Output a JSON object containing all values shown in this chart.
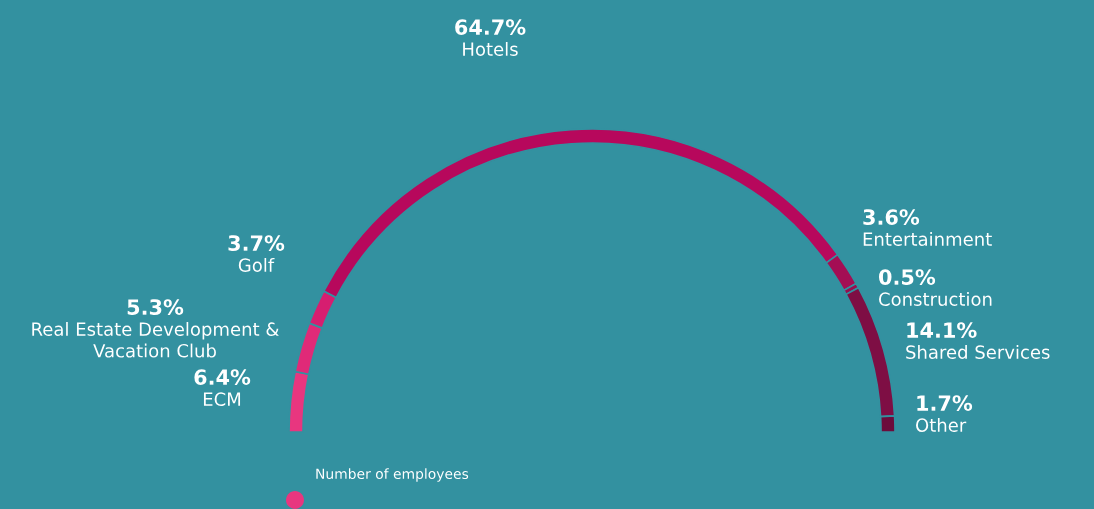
{
  "chart_data": {
    "type": "donut",
    "categories": [
      "ECM",
      "Real Estate Development &\nVacation Club",
      "Golf",
      "Hotels",
      "Entertainment",
      "Construction",
      "Shared Services",
      "Other"
    ],
    "values": [
      6.4,
      5.3,
      3.7,
      64.7,
      3.6,
      0.5,
      14.1,
      1.7
    ],
    "value_labels": [
      "6.4%",
      "5.3%",
      "3.7%",
      "64.7%",
      "3.6%",
      "0.5%",
      "14.1%",
      "1.7%"
    ],
    "colors": [
      "#e8367f",
      "#e02a78",
      "#d61e70",
      "#b7085c",
      "#a40e54",
      "#9a0d4e",
      "#7e0e44",
      "#6c0c3c"
    ],
    "annotations": [
      "Number of employees"
    ]
  }
}
